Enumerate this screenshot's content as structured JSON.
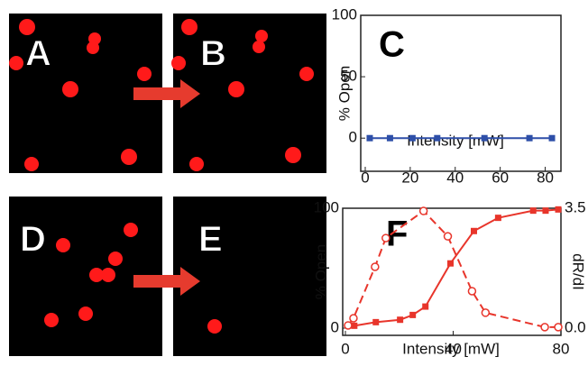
{
  "panels": {
    "labels": [
      "A",
      "B",
      "D",
      "E"
    ]
  },
  "chart_data": [
    {
      "type": "line",
      "title": "C",
      "xlabel": "Intensity [mW]",
      "ylabel": "% Open",
      "xlim": [
        -2,
        87
      ],
      "xticks": [
        0,
        20,
        40,
        60,
        80
      ],
      "ylim": [
        -27,
        100
      ],
      "yticks": [
        0,
        50,
        100
      ],
      "series": [
        {
          "color": "#2e4fa8",
          "marker": "square",
          "linestyle": "solid",
          "x": [
            2,
            11,
            21,
            32,
            53,
            73,
            83
          ],
          "values": [
            0,
            0,
            0,
            0,
            0,
            0,
            0
          ]
        }
      ]
    },
    {
      "type": "line",
      "title": "F",
      "xlabel": "Intensity [mW]",
      "ylabel": "% Open",
      "y2label": "dR/dI",
      "xlim": [
        -1,
        80
      ],
      "xticks": [
        0,
        40,
        80
      ],
      "ylim": [
        -6,
        100
      ],
      "yticks": [
        0,
        100
      ],
      "y2lim": [
        -0.21,
        3.5
      ],
      "y2ticks": [
        {
          "value": 0,
          "label": "0.0"
        },
        3.5
      ],
      "series": [
        {
          "color": "#e8352b",
          "marker": "square",
          "linestyle": "solid",
          "x": [
            3.3,
            11.3,
            20.3,
            25,
            29.7,
            39,
            47.7,
            56.7,
            69.7,
            74.3,
            79
          ],
          "values": [
            2,
            5,
            7,
            11,
            18,
            54,
            81,
            92,
            98,
            98,
            99
          ]
        },
        {
          "color": "#e8352b",
          "marker": "circle-open",
          "linestyle": "dashed",
          "axis": "y2",
          "x": [
            1,
            3,
            11,
            15,
            29,
            38,
            47,
            52,
            74,
            79
          ],
          "values": [
            0.08,
            0.29,
            1.79,
            2.63,
            3.42,
            2.68,
            1.08,
            0.45,
            0.03,
            0.03
          ]
        }
      ]
    }
  ]
}
